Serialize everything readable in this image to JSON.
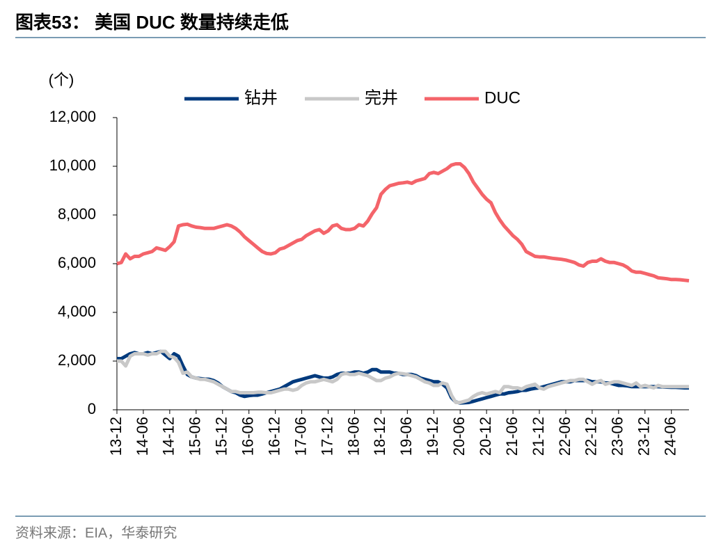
{
  "header": {
    "title": "图表53：  美国 DUC 数量持续走低"
  },
  "chart_data": {
    "type": "line",
    "y_unit": "(个)",
    "categories": [
      "13-12",
      null,
      null,
      null,
      null,
      null,
      "14-06",
      null,
      null,
      null,
      null,
      null,
      "14-12",
      null,
      null,
      null,
      null,
      null,
      "15-06",
      null,
      null,
      null,
      null,
      null,
      "15-12",
      null,
      null,
      null,
      null,
      null,
      "16-06",
      null,
      null,
      null,
      null,
      null,
      "16-12",
      null,
      null,
      null,
      null,
      null,
      "17-06",
      null,
      null,
      null,
      null,
      null,
      "17-12",
      null,
      null,
      null,
      null,
      null,
      "18-06",
      null,
      null,
      null,
      null,
      null,
      "18-12",
      null,
      null,
      null,
      null,
      null,
      "19-06",
      null,
      null,
      null,
      null,
      null,
      "19-12",
      null,
      null,
      null,
      null,
      null,
      "20-06",
      null,
      null,
      null,
      null,
      null,
      "20-12",
      null,
      null,
      null,
      null,
      null,
      "21-06",
      null,
      null,
      null,
      null,
      null,
      "21-12",
      null,
      null,
      null,
      null,
      null,
      "22-06",
      null,
      null,
      null,
      null,
      null,
      "22-12",
      null,
      null,
      null,
      null,
      null,
      "23-06",
      null,
      null,
      null,
      null,
      null,
      "23-12",
      null,
      null,
      null,
      null,
      null,
      "24-06",
      null,
      null,
      null,
      null
    ],
    "series": [
      {
        "name": "钻井",
        "color": "#003a7d",
        "values": [
          2100,
          2100,
          2200,
          2300,
          2350,
          2300,
          2300,
          2350,
          2300,
          2350,
          2400,
          2250,
          2100,
          2300,
          2200,
          1800,
          1450,
          1350,
          1300,
          1280,
          1260,
          1250,
          1200,
          1100,
          950,
          850,
          750,
          700,
          600,
          550,
          580,
          600,
          600,
          650,
          700,
          750,
          800,
          850,
          950,
          1050,
          1150,
          1200,
          1250,
          1300,
          1350,
          1400,
          1350,
          1300,
          1300,
          1350,
          1450,
          1500,
          1500,
          1500,
          1550,
          1550,
          1500,
          1550,
          1650,
          1650,
          1550,
          1550,
          1550,
          1500,
          1500,
          1450,
          1450,
          1450,
          1400,
          1300,
          1250,
          1200,
          1150,
          1150,
          1050,
          900,
          500,
          320,
          280,
          290,
          300,
          350,
          400,
          450,
          500,
          550,
          600,
          650,
          650,
          700,
          720,
          750,
          800,
          800,
          850,
          880,
          900,
          950,
          1000,
          1050,
          1100,
          1150,
          1150,
          1150,
          1200,
          1200,
          1200,
          1200,
          1150,
          1150,
          1150,
          1100,
          1100,
          1050,
          1000,
          1000,
          980,
          950,
          950,
          950,
          950,
          950,
          950,
          950,
          940,
          930,
          920,
          920,
          910,
          900,
          900
        ]
      },
      {
        "name": "完井",
        "color": "#c8c8c8",
        "values": [
          2000,
          2000,
          1800,
          2200,
          2300,
          2300,
          2300,
          2250,
          2300,
          2300,
          2400,
          2400,
          2200,
          2150,
          1950,
          1500,
          1550,
          1350,
          1300,
          1250,
          1250,
          1200,
          1150,
          1050,
          950,
          850,
          750,
          750,
          700,
          700,
          700,
          700,
          720,
          720,
          700,
          700,
          750,
          800,
          850,
          850,
          800,
          850,
          1000,
          1100,
          1150,
          1150,
          1200,
          1250,
          1200,
          1150,
          1250,
          1450,
          1500,
          1450,
          1450,
          1500,
          1450,
          1400,
          1300,
          1200,
          1200,
          1300,
          1350,
          1450,
          1500,
          1480,
          1450,
          1400,
          1350,
          1250,
          1150,
          1100,
          1000,
          1000,
          1100,
          1050,
          600,
          300,
          300,
          350,
          400,
          550,
          650,
          700,
          650,
          700,
          750,
          700,
          950,
          950,
          900,
          900,
          850,
          950,
          1000,
          1050,
          900,
          850,
          950,
          1000,
          1050,
          1100,
          1150,
          1200,
          1200,
          1250,
          1250,
          1150,
          1050,
          1150,
          1200,
          1050,
          1100,
          1150,
          1150,
          1100,
          1050,
          1000,
          1100,
          950,
          1000,
          950,
          900,
          1000,
          950,
          950,
          950,
          950,
          950,
          950,
          950
        ]
      },
      {
        "name": "DUC",
        "color": "#f4646a",
        "values": [
          6000,
          6050,
          6400,
          6200,
          6300,
          6300,
          6400,
          6450,
          6500,
          6650,
          6600,
          6550,
          6700,
          6900,
          7550,
          7600,
          7620,
          7550,
          7500,
          7480,
          7450,
          7450,
          7450,
          7500,
          7550,
          7600,
          7550,
          7450,
          7300,
          7100,
          6950,
          6800,
          6650,
          6500,
          6420,
          6400,
          6450,
          6600,
          6650,
          6750,
          6850,
          6950,
          7000,
          7150,
          7250,
          7350,
          7400,
          7250,
          7350,
          7550,
          7600,
          7450,
          7400,
          7400,
          7450,
          7600,
          7550,
          7750,
          8050,
          8300,
          8850,
          9050,
          9200,
          9250,
          9300,
          9320,
          9350,
          9300,
          9400,
          9450,
          9500,
          9700,
          9750,
          9700,
          9800,
          9900,
          10050,
          10100,
          10100,
          9950,
          9700,
          9350,
          9100,
          8850,
          8650,
          8500,
          8100,
          7800,
          7550,
          7350,
          7150,
          7000,
          6800,
          6500,
          6400,
          6300,
          6280,
          6280,
          6250,
          6220,
          6200,
          6180,
          6150,
          6100,
          6050,
          5950,
          5900,
          6050,
          6100,
          6100,
          6200,
          6100,
          6050,
          6050,
          6000,
          5950,
          5850,
          5700,
          5650,
          5650,
          5600,
          5550,
          5500,
          5420,
          5400,
          5380,
          5350,
          5350,
          5340,
          5320,
          5300
        ]
      }
    ],
    "ylim": [
      0,
      12000
    ],
    "yticks": [
      0,
      {
        "value": 2000,
        "label": "2,000"
      },
      {
        "value": 4000,
        "label": "4,000"
      },
      {
        "value": 6000,
        "label": "6,000"
      },
      {
        "value": 8000,
        "label": "8,000"
      },
      {
        "value": 10000,
        "label": "10,000"
      },
      {
        "value": 12000,
        "label": "12,000"
      }
    ]
  },
  "footer": {
    "source": "资料来源：EIA，华泰研究"
  }
}
